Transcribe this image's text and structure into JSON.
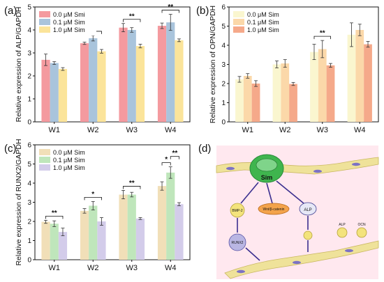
{
  "panel_labels": [
    "(a)",
    "(b)",
    "(c)",
    "(d)"
  ],
  "chart_data": [
    {
      "type": "bar",
      "panel": "(a)",
      "ylabel": "Relative expression of ALP/GAPDH",
      "categories": [
        "W1",
        "W2",
        "W3",
        "W4"
      ],
      "ylim": [
        0,
        5
      ],
      "yticks": [
        "0",
        "1",
        "2",
        "3",
        "4",
        "5"
      ],
      "legend_position": "top-left",
      "series": [
        {
          "name": "0.0 μM Smi",
          "color": "#f49a9f",
          "values": [
            2.7,
            3.42,
            4.1,
            4.18
          ],
          "errors": [
            0.25,
            0.05,
            0.18,
            0.12
          ]
        },
        {
          "name": "0.1 μM Sim",
          "color": "#a9c4dc",
          "values": [
            2.56,
            3.64,
            4.0,
            4.33
          ],
          "errors": [
            0.06,
            0.12,
            0.1,
            0.35
          ]
        },
        {
          "name": "1.0 μM Sim",
          "color": "#fbe49a",
          "values": [
            2.3,
            3.07,
            3.3,
            3.55
          ],
          "errors": [
            0.06,
            0.08,
            0.08,
            0.06
          ]
        }
      ],
      "annotations": [
        {
          "category": "W2",
          "text": "**"
        },
        {
          "category": "W3",
          "text": "**"
        },
        {
          "category": "W4",
          "text": "**"
        }
      ]
    },
    {
      "type": "bar",
      "panel": "(b)",
      "ylabel": "Relative expression of OPN/GAPDH",
      "categories": [
        "W1",
        "W2",
        "W3",
        "W4"
      ],
      "ylim": [
        0,
        6
      ],
      "yticks": [
        "0",
        "1",
        "2",
        "3",
        "4",
        "5",
        "6"
      ],
      "legend_position": "top-left",
      "series": [
        {
          "name": "0.0 μM Sim",
          "color": "#faf6cf",
          "values": [
            2.22,
            3.0,
            3.65,
            4.55
          ],
          "errors": [
            0.15,
            0.18,
            0.4,
            0.62
          ]
        },
        {
          "name": "0.1 μM Sim",
          "color": "#fbd8a9",
          "values": [
            2.4,
            3.05,
            3.8,
            4.8
          ],
          "errors": [
            0.12,
            0.2,
            0.45,
            0.3
          ]
        },
        {
          "name": "1.0 μM Sim",
          "color": "#f5a98a",
          "values": [
            2.0,
            1.98,
            2.95,
            4.05
          ],
          "errors": [
            0.15,
            0.08,
            0.1,
            0.15
          ]
        }
      ],
      "annotations": [
        {
          "category": "W3",
          "text": "**"
        }
      ]
    },
    {
      "type": "bar",
      "panel": "(c)",
      "ylabel": "Relative expression of RUNX2/GAPDH",
      "categories": [
        "W1",
        "W2",
        "W3",
        "W4"
      ],
      "ylim": [
        0,
        6
      ],
      "yticks": [
        "0",
        "1",
        "2",
        "3",
        "4",
        "5",
        "6"
      ],
      "legend_position": "top-left",
      "series": [
        {
          "name": "0.0 μM Sim",
          "color": "#f1dfb8",
          "values": [
            1.98,
            2.55,
            3.4,
            3.85
          ],
          "errors": [
            0.08,
            0.12,
            0.22,
            0.22
          ]
        },
        {
          "name": "0.1 μM Sim",
          "color": "#bfe6bb",
          "values": [
            1.88,
            2.82,
            3.4,
            4.55
          ],
          "errors": [
            0.15,
            0.22,
            0.12,
            0.3
          ]
        },
        {
          "name": "1.0 μM Sim",
          "color": "#d3ccea",
          "values": [
            1.45,
            2.0,
            2.15,
            2.9
          ],
          "errors": [
            0.2,
            0.2,
            0.05,
            0.08
          ]
        }
      ],
      "annotations": [
        {
          "category": "W1",
          "text": "**"
        },
        {
          "category": "W2",
          "text": "*"
        },
        {
          "category": "W3",
          "text": "**"
        },
        {
          "category": "W4",
          "text": "*",
          "pair": "first-second"
        },
        {
          "category": "W4",
          "text": "**",
          "pair": "second-third"
        }
      ]
    }
  ],
  "diagram": {
    "panel": "(d)",
    "drug_label": "Sim",
    "node_labels": [
      "BMP-2",
      "Wnt/β-catenin",
      "ALP",
      "RUNX2",
      "ALP",
      "OCN"
    ],
    "colors": {
      "background": "#ffe5ee",
      "cell": "#e7d97a",
      "drug": "#35b44a",
      "arrow": "#3b2f8f"
    }
  }
}
